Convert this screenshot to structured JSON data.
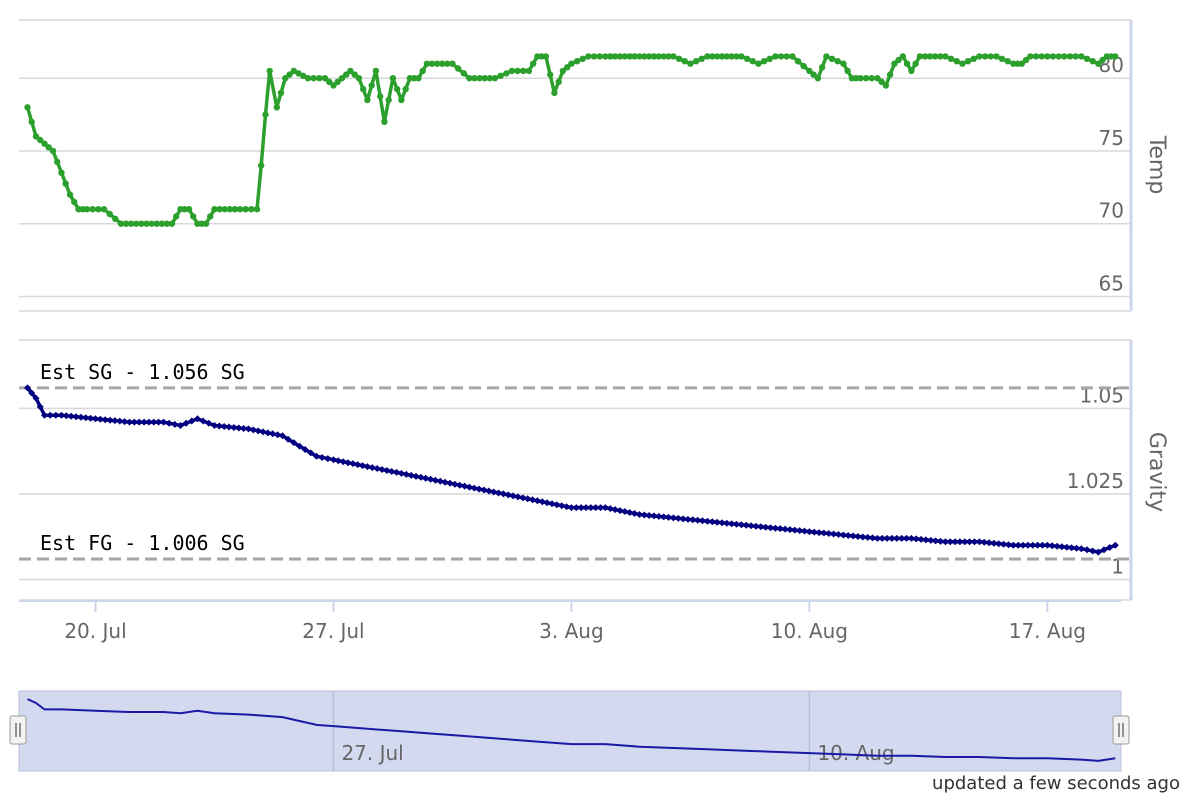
{
  "colors": {
    "temp": "#2ca02c",
    "gravity": "#000080",
    "grid": "#d9d9d9",
    "axis_line": "#ccd6eb",
    "ref_line": "#a6a6a6",
    "navigator_fill": "#d3daef"
  },
  "chart_data": [
    {
      "type": "line",
      "ylabel": "Temp",
      "series": [
        {
          "name": "",
          "points": [
            [
              "2018-07-18T00:00",
              78
            ],
            [
              "2018-07-18T06:00",
              76
            ],
            [
              "2018-07-18T12:00",
              75.5
            ],
            [
              "2018-07-18T18:00",
              75
            ],
            [
              "2018-07-19T00:00",
              73.5
            ],
            [
              "2018-07-19T06:00",
              72
            ],
            [
              "2018-07-19T12:00",
              71
            ],
            [
              "2018-07-19T18:00",
              71
            ],
            [
              "2018-07-20T06:00",
              71
            ],
            [
              "2018-07-20T18:00",
              70
            ],
            [
              "2018-07-21T12:00",
              70
            ],
            [
              "2018-07-22T06:00",
              70
            ],
            [
              "2018-07-22T12:00",
              71
            ],
            [
              "2018-07-22T18:00",
              71
            ],
            [
              "2018-07-23T00:00",
              70
            ],
            [
              "2018-07-23T06:00",
              70
            ],
            [
              "2018-07-23T12:00",
              71
            ],
            [
              "2018-07-24T06:00",
              71
            ],
            [
              "2018-07-24T18:00",
              71
            ],
            [
              "2018-07-24T21:00",
              74
            ],
            [
              "2018-07-25T00:00",
              77.5
            ],
            [
              "2018-07-25T03:00",
              80.5
            ],
            [
              "2018-07-25T08:00",
              78
            ],
            [
              "2018-07-25T14:00",
              80
            ],
            [
              "2018-07-25T20:00",
              80.5
            ],
            [
              "2018-07-26T06:00",
              80
            ],
            [
              "2018-07-26T18:00",
              80
            ],
            [
              "2018-07-27T00:00",
              79.5
            ],
            [
              "2018-07-27T06:00",
              80
            ],
            [
              "2018-07-27T12:00",
              80.5
            ],
            [
              "2018-07-27T18:00",
              80
            ],
            [
              "2018-07-28T00:00",
              78.5
            ],
            [
              "2018-07-28T06:00",
              80.5
            ],
            [
              "2018-07-28T12:00",
              77
            ],
            [
              "2018-07-28T18:00",
              80
            ],
            [
              "2018-07-29T00:00",
              78.5
            ],
            [
              "2018-07-29T06:00",
              80
            ],
            [
              "2018-07-29T12:00",
              80
            ],
            [
              "2018-07-29T18:00",
              81
            ],
            [
              "2018-07-30T12:00",
              81
            ],
            [
              "2018-07-31T00:00",
              80
            ],
            [
              "2018-07-31T18:00",
              80
            ],
            [
              "2018-08-01T06:00",
              80.5
            ],
            [
              "2018-08-01T18:00",
              80.5
            ],
            [
              "2018-08-02T00:00",
              81.5
            ],
            [
              "2018-08-02T06:00",
              81.5
            ],
            [
              "2018-08-02T12:00",
              79
            ],
            [
              "2018-08-02T18:00",
              80.5
            ],
            [
              "2018-08-03T00:00",
              81
            ],
            [
              "2018-08-03T12:00",
              81.5
            ],
            [
              "2018-08-04T00:00",
              81.5
            ],
            [
              "2018-08-05T00:00",
              81.5
            ],
            [
              "2018-08-06T00:00",
              81.5
            ],
            [
              "2018-08-06T12:00",
              81
            ],
            [
              "2018-08-07T00:00",
              81.5
            ],
            [
              "2018-08-08T00:00",
              81.5
            ],
            [
              "2018-08-08T12:00",
              81
            ],
            [
              "2018-08-09T00:00",
              81.5
            ],
            [
              "2018-08-09T12:00",
              81.5
            ],
            [
              "2018-08-10T00:00",
              80.5
            ],
            [
              "2018-08-10T06:00",
              80
            ],
            [
              "2018-08-10T12:00",
              81.5
            ],
            [
              "2018-08-11T00:00",
              81
            ],
            [
              "2018-08-11T06:00",
              80
            ],
            [
              "2018-08-11T12:00",
              80
            ],
            [
              "2018-08-12T00:00",
              80
            ],
            [
              "2018-08-12T06:00",
              79.5
            ],
            [
              "2018-08-12T12:00",
              81
            ],
            [
              "2018-08-12T18:00",
              81.5
            ],
            [
              "2018-08-13T00:00",
              80.5
            ],
            [
              "2018-08-13T06:00",
              81.5
            ],
            [
              "2018-08-14T00:00",
              81.5
            ],
            [
              "2018-08-14T12:00",
              81
            ],
            [
              "2018-08-15T00:00",
              81.5
            ],
            [
              "2018-08-15T12:00",
              81.5
            ],
            [
              "2018-08-16T00:00",
              81
            ],
            [
              "2018-08-16T06:00",
              81
            ],
            [
              "2018-08-16T12:00",
              81.5
            ],
            [
              "2018-08-17T00:00",
              81.5
            ],
            [
              "2018-08-17T12:00",
              81.5
            ],
            [
              "2018-08-18T00:00",
              81.5
            ],
            [
              "2018-08-18T12:00",
              81
            ],
            [
              "2018-08-18T18:00",
              81.5
            ],
            [
              "2018-08-19T00:00",
              81.5
            ]
          ]
        }
      ],
      "yticks": [
        65,
        70,
        75,
        80
      ],
      "ylim": [
        64,
        84
      ],
      "grid": true
    },
    {
      "type": "line",
      "ylabel": "Gravity",
      "series": [
        {
          "name": "",
          "points": [
            [
              "2018-07-18T00:00",
              1.056
            ],
            [
              "2018-07-18T06:00",
              1.053
            ],
            [
              "2018-07-18T12:00",
              1.048
            ],
            [
              "2018-07-19T00:00",
              1.048
            ],
            [
              "2018-07-20T00:00",
              1.047
            ],
            [
              "2018-07-21T00:00",
              1.046
            ],
            [
              "2018-07-22T00:00",
              1.046
            ],
            [
              "2018-07-22T12:00",
              1.045
            ],
            [
              "2018-07-23T00:00",
              1.047
            ],
            [
              "2018-07-23T12:00",
              1.045
            ],
            [
              "2018-07-24T12:00",
              1.044
            ],
            [
              "2018-07-25T12:00",
              1.042
            ],
            [
              "2018-07-26T00:00",
              1.039
            ],
            [
              "2018-07-26T12:00",
              1.036
            ],
            [
              "2018-07-27T00:00",
              1.035
            ],
            [
              "2018-07-28T00:00",
              1.033
            ],
            [
              "2018-07-29T00:00",
              1.031
            ],
            [
              "2018-07-30T00:00",
              1.029
            ],
            [
              "2018-07-31T00:00",
              1.027
            ],
            [
              "2018-08-01T00:00",
              1.025
            ],
            [
              "2018-08-02T00:00",
              1.023
            ],
            [
              "2018-08-03T00:00",
              1.021
            ],
            [
              "2018-08-04T00:00",
              1.021
            ],
            [
              "2018-08-05T00:00",
              1.019
            ],
            [
              "2018-08-06T00:00",
              1.018
            ],
            [
              "2018-08-07T00:00",
              1.017
            ],
            [
              "2018-08-08T00:00",
              1.016
            ],
            [
              "2018-08-09T00:00",
              1.015
            ],
            [
              "2018-08-10T00:00",
              1.014
            ],
            [
              "2018-08-11T00:00",
              1.013
            ],
            [
              "2018-08-12T00:00",
              1.012
            ],
            [
              "2018-08-13T00:00",
              1.012
            ],
            [
              "2018-08-14T00:00",
              1.011
            ],
            [
              "2018-08-15T00:00",
              1.011
            ],
            [
              "2018-08-16T00:00",
              1.01
            ],
            [
              "2018-08-17T00:00",
              1.01
            ],
            [
              "2018-08-18T00:00",
              1.009
            ],
            [
              "2018-08-18T12:00",
              1.008
            ],
            [
              "2018-08-19T00:00",
              1.01
            ]
          ]
        }
      ],
      "yticks": [
        1,
        1.025,
        1.05
      ],
      "ytick_labels": [
        "1",
        "1.025",
        "1.05"
      ],
      "ylim": [
        0.994,
        1.07
      ],
      "grid": true,
      "plot_lines": [
        {
          "value": 1.056,
          "label": "Est SG - 1.056 SG"
        },
        {
          "value": 1.006,
          "label": "Est FG - 1.006 SG"
        }
      ]
    }
  ],
  "x_axis": {
    "range": [
      "2018-07-17T18:00",
      "2018-08-19T04:00"
    ],
    "ticks": [
      {
        "date": "2018-07-20",
        "label": "20. Jul"
      },
      {
        "date": "2018-07-27",
        "label": "27. Jul"
      },
      {
        "date": "2018-08-03",
        "label": "3. Aug"
      },
      {
        "date": "2018-08-10",
        "label": "10. Aug"
      },
      {
        "date": "2018-08-17",
        "label": "17. Aug"
      }
    ]
  },
  "navigator": {
    "ticks": [
      {
        "date": "2018-07-27",
        "label": "27. Jul"
      },
      {
        "date": "2018-08-10",
        "label": "10. Aug"
      }
    ]
  },
  "footer": {
    "updated": "updated a few seconds ago"
  }
}
